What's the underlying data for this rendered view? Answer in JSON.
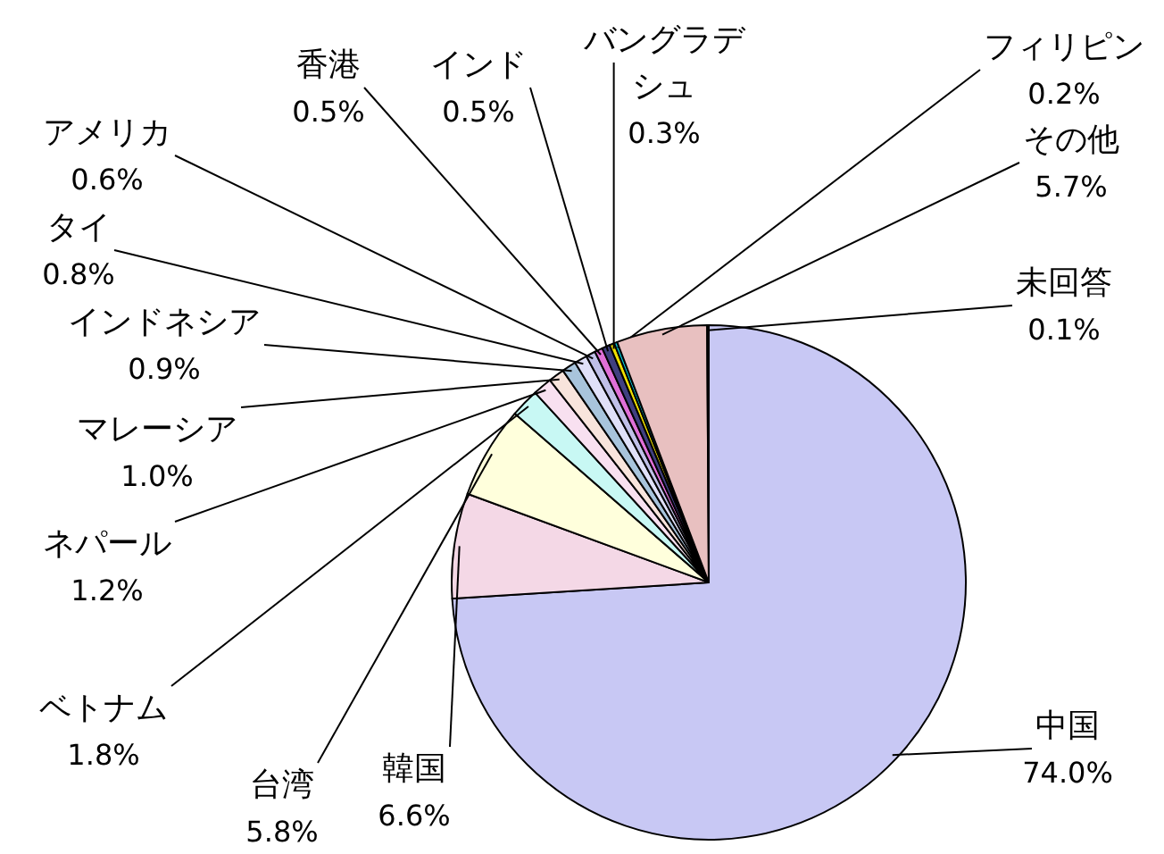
{
  "chart_data": {
    "type": "pie",
    "categories": [
      "中国",
      "韓国",
      "台湾",
      "ベトナム",
      "ネパール",
      "マレーシア",
      "インドネシア",
      "タイ",
      "アメリカ",
      "香港",
      "インド",
      "バングラデシュ",
      "フィリピン",
      "その他",
      "未回答"
    ],
    "values": [
      74.0,
      6.6,
      5.8,
      1.8,
      1.2,
      1.0,
      0.9,
      0.8,
      0.6,
      0.5,
      0.5,
      0.3,
      0.2,
      5.7,
      0.1
    ],
    "colors": [
      "#c8c8f4",
      "#f4d8e6",
      "#ffffdc",
      "#c8f8f4",
      "#f8e0f0",
      "#f8e4dc",
      "#a8c4dc",
      "#e0e0f8",
      "#c0c0e8",
      "#e070d8",
      "#404080",
      "#f0e000",
      "#00c8d8",
      "#e8c0c0",
      "#800080"
    ],
    "value_labels": [
      "74.0%",
      "6.6%",
      "5.8%",
      "1.8%",
      "1.2%",
      "1.0%",
      "0.9%",
      "0.8%",
      "0.6%",
      "0.5%",
      "0.5%",
      "0.3%",
      "0.2%",
      "5.7%",
      "0.1%"
    ]
  }
}
